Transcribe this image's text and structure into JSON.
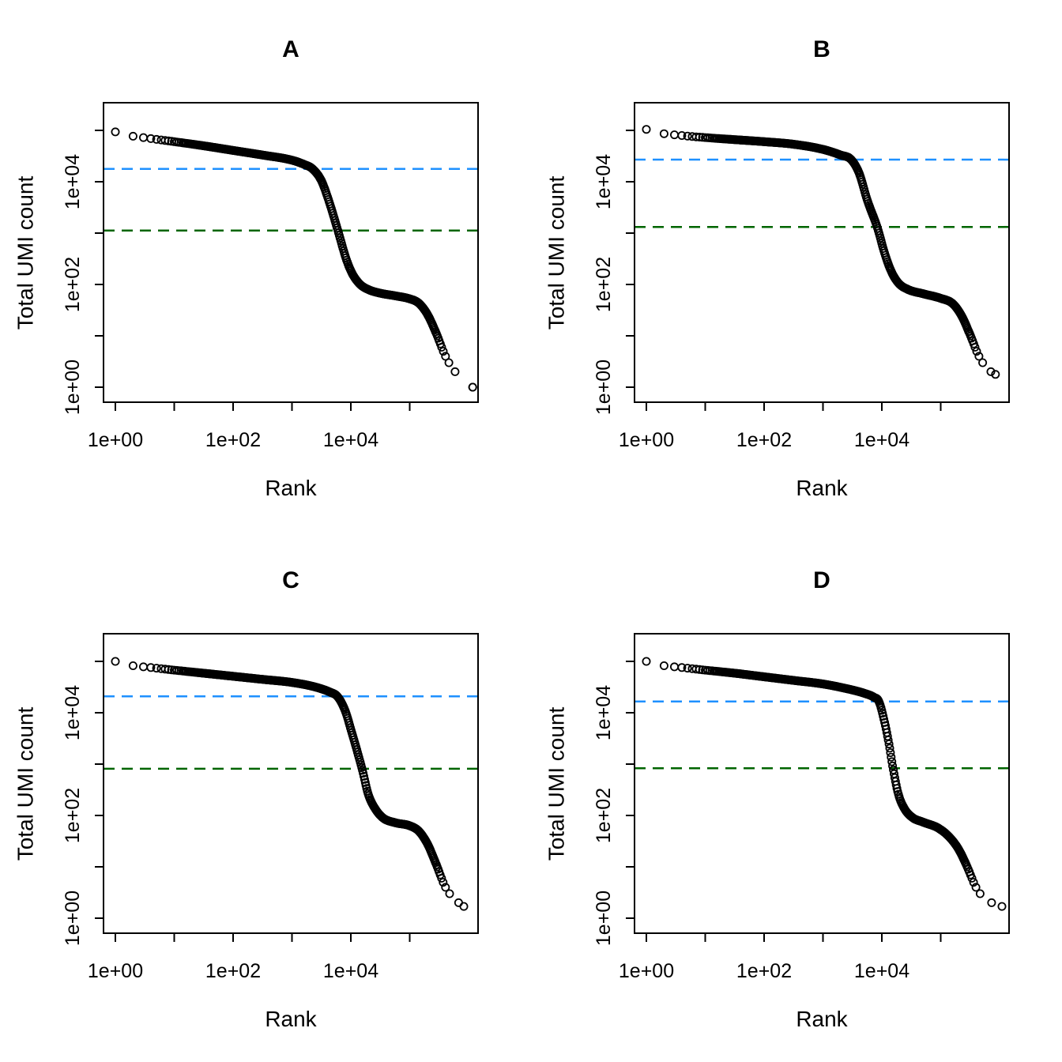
{
  "page": {
    "background": "#ffffff",
    "marker": "open-circle",
    "marker_color": "#000000"
  },
  "chart_data": [
    {
      "id": "A",
      "type": "scatter",
      "title": "A",
      "xlabel": "Rank",
      "ylabel": "Total UMI count",
      "x_scale": "log10",
      "y_scale": "log10",
      "xlim_log": [
        -0.2,
        6.16
      ],
      "ylim_log": [
        -0.29,
        5.54
      ],
      "x_tick_labels": [
        "1e+00",
        "1e+02",
        "1e+04"
      ],
      "x_tick_logs": [
        0,
        2,
        4
      ],
      "x_minor_tick_logs": [
        1,
        3,
        5
      ],
      "y_tick_labels": [
        "1e+00",
        "1e+02",
        "1e+04"
      ],
      "y_tick_logs": [
        0,
        2,
        4
      ],
      "y_minor_tick_logs": [
        1,
        3,
        5
      ],
      "grid": false,
      "knee_line": {
        "color": "#1E90FF",
        "style": "dashed",
        "value": 17800,
        "log10": 4.25
      },
      "inflection_line": {
        "color": "#006400",
        "style": "dashed",
        "value": 1120,
        "log10": 3.05
      },
      "first_count_for_counts": 1,
      "curve_log10_points": [
        [
          0,
          4.97
        ],
        [
          0.15,
          4.91
        ],
        [
          0.35,
          4.88
        ],
        [
          0.6,
          4.84
        ],
        [
          1.0,
          4.78
        ],
        [
          1.5,
          4.7
        ],
        [
          2.0,
          4.61
        ],
        [
          2.5,
          4.52
        ],
        [
          3.0,
          4.42
        ],
        [
          3.2,
          4.34
        ],
        [
          3.35,
          4.25
        ],
        [
          3.5,
          4.02
        ],
        [
          3.62,
          3.65
        ],
        [
          3.78,
          3.05
        ],
        [
          3.92,
          2.5
        ],
        [
          4.02,
          2.22
        ],
        [
          4.15,
          2.01
        ],
        [
          4.3,
          1.9
        ],
        [
          4.5,
          1.83
        ],
        [
          4.75,
          1.78
        ],
        [
          5.0,
          1.72
        ],
        [
          5.15,
          1.64
        ],
        [
          5.3,
          1.42
        ],
        [
          5.45,
          1.05
        ],
        [
          5.6,
          0.62
        ],
        [
          5.72,
          0.38
        ],
        [
          5.85,
          0.2
        ],
        [
          6.07,
          0.0
        ]
      ]
    },
    {
      "id": "B",
      "type": "scatter",
      "title": "B",
      "xlabel": "Rank",
      "ylabel": "Total UMI count",
      "x_scale": "log10",
      "y_scale": "log10",
      "xlim_log": [
        -0.2,
        6.16
      ],
      "ylim_log": [
        -0.29,
        5.54
      ],
      "x_tick_labels": [
        "1e+00",
        "1e+02",
        "1e+04"
      ],
      "x_tick_logs": [
        0,
        2,
        4
      ],
      "x_minor_tick_logs": [
        1,
        3,
        5
      ],
      "y_tick_labels": [
        "1e+00",
        "1e+02",
        "1e+04"
      ],
      "y_tick_logs": [
        0,
        2,
        4
      ],
      "y_minor_tick_logs": [
        1,
        3,
        5
      ],
      "grid": false,
      "knee_line": {
        "color": "#1E90FF",
        "style": "dashed",
        "value": 26900,
        "log10": 4.43
      },
      "inflection_line": {
        "color": "#006400",
        "style": "dashed",
        "value": 1320,
        "log10": 3.12
      },
      "first_count_for_counts": 2,
      "curve_log10_points": [
        [
          0,
          5.02
        ],
        [
          0.15,
          4.96
        ],
        [
          0.35,
          4.93
        ],
        [
          0.6,
          4.9
        ],
        [
          1.0,
          4.86
        ],
        [
          1.5,
          4.82
        ],
        [
          2.0,
          4.78
        ],
        [
          2.5,
          4.73
        ],
        [
          3.0,
          4.63
        ],
        [
          3.3,
          4.52
        ],
        [
          3.48,
          4.43
        ],
        [
          3.62,
          4.15
        ],
        [
          3.75,
          3.65
        ],
        [
          3.92,
          3.12
        ],
        [
          4.05,
          2.6
        ],
        [
          4.15,
          2.28
        ],
        [
          4.28,
          2.03
        ],
        [
          4.45,
          1.9
        ],
        [
          4.7,
          1.82
        ],
        [
          5.0,
          1.73
        ],
        [
          5.2,
          1.63
        ],
        [
          5.35,
          1.4
        ],
        [
          5.5,
          1.02
        ],
        [
          5.65,
          0.6
        ],
        [
          5.8,
          0.35
        ],
        [
          5.93,
          0.25
        ]
      ]
    },
    {
      "id": "C",
      "type": "scatter",
      "title": "C",
      "xlabel": "Rank",
      "ylabel": "Total UMI count",
      "x_scale": "log10",
      "y_scale": "log10",
      "xlim_log": [
        -0.2,
        6.16
      ],
      "ylim_log": [
        -0.29,
        5.54
      ],
      "x_tick_labels": [
        "1e+00",
        "1e+02",
        "1e+04"
      ],
      "x_tick_logs": [
        0,
        2,
        4
      ],
      "x_minor_tick_logs": [
        1,
        3,
        5
      ],
      "y_tick_labels": [
        "1e+00",
        "1e+02",
        "1e+04"
      ],
      "y_tick_logs": [
        0,
        2,
        4
      ],
      "y_minor_tick_logs": [
        1,
        3,
        5
      ],
      "grid": false,
      "knee_line": {
        "color": "#1E90FF",
        "style": "dashed",
        "value": 20900,
        "log10": 4.32
      },
      "inflection_line": {
        "color": "#006400",
        "style": "dashed",
        "value": 810,
        "log10": 2.91
      },
      "first_count_for_counts": 2,
      "curve_log10_points": [
        [
          0,
          5.0
        ],
        [
          0.15,
          4.94
        ],
        [
          0.35,
          4.91
        ],
        [
          0.6,
          4.88
        ],
        [
          1.0,
          4.83
        ],
        [
          1.5,
          4.77
        ],
        [
          2.0,
          4.71
        ],
        [
          2.5,
          4.65
        ],
        [
          3.0,
          4.59
        ],
        [
          3.4,
          4.5
        ],
        [
          3.65,
          4.4
        ],
        [
          3.77,
          4.32
        ],
        [
          3.9,
          4.05
        ],
        [
          4.02,
          3.6
        ],
        [
          4.19,
          2.91
        ],
        [
          4.3,
          2.4
        ],
        [
          4.42,
          2.12
        ],
        [
          4.55,
          1.95
        ],
        [
          4.75,
          1.86
        ],
        [
          5.0,
          1.8
        ],
        [
          5.15,
          1.7
        ],
        [
          5.3,
          1.45
        ],
        [
          5.45,
          1.05
        ],
        [
          5.6,
          0.62
        ],
        [
          5.75,
          0.38
        ],
        [
          5.92,
          0.23
        ]
      ]
    },
    {
      "id": "D",
      "type": "scatter",
      "title": "D",
      "xlabel": "Rank",
      "ylabel": "Total UMI count",
      "x_scale": "log10",
      "y_scale": "log10",
      "xlim_log": [
        -0.2,
        6.16
      ],
      "ylim_log": [
        -0.29,
        5.54
      ],
      "x_tick_labels": [
        "1e+00",
        "1e+02",
        "1e+04"
      ],
      "x_tick_logs": [
        0,
        2,
        4
      ],
      "x_minor_tick_logs": [
        1,
        3,
        5
      ],
      "y_tick_labels": [
        "1e+00",
        "1e+02",
        "1e+04"
      ],
      "y_tick_logs": [
        0,
        2,
        4
      ],
      "y_minor_tick_logs": [
        1,
        3,
        5
      ],
      "grid": false,
      "knee_line": {
        "color": "#1E90FF",
        "style": "dashed",
        "value": 16600,
        "log10": 4.22
      },
      "inflection_line": {
        "color": "#006400",
        "style": "dashed",
        "value": 830,
        "log10": 2.92
      },
      "first_count_for_counts": 2,
      "curve_log10_points": [
        [
          0,
          5.0
        ],
        [
          0.15,
          4.94
        ],
        [
          0.35,
          4.91
        ],
        [
          0.6,
          4.88
        ],
        [
          1.0,
          4.83
        ],
        [
          1.5,
          4.77
        ],
        [
          2.0,
          4.7
        ],
        [
          2.5,
          4.63
        ],
        [
          3.0,
          4.56
        ],
        [
          3.4,
          4.47
        ],
        [
          3.7,
          4.38
        ],
        [
          3.87,
          4.3
        ],
        [
          3.95,
          4.22
        ],
        [
          4.05,
          3.8
        ],
        [
          4.12,
          3.4
        ],
        [
          4.19,
          2.92
        ],
        [
          4.28,
          2.42
        ],
        [
          4.38,
          2.14
        ],
        [
          4.52,
          1.96
        ],
        [
          4.7,
          1.87
        ],
        [
          4.95,
          1.76
        ],
        [
          5.13,
          1.6
        ],
        [
          5.3,
          1.35
        ],
        [
          5.45,
          1.0
        ],
        [
          5.6,
          0.6
        ],
        [
          5.75,
          0.38
        ],
        [
          6.04,
          0.23
        ]
      ]
    }
  ]
}
